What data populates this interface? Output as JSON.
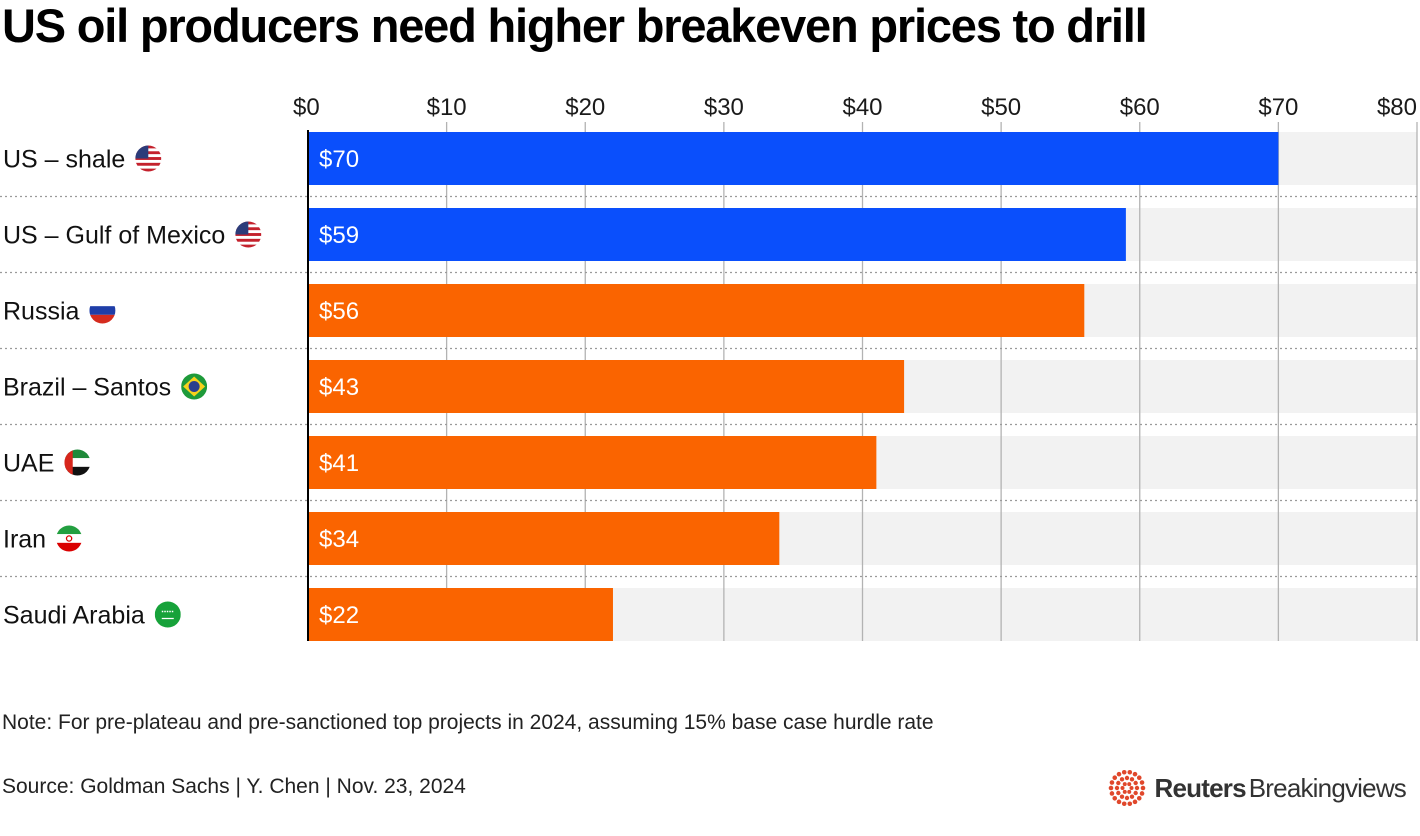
{
  "title": "US oil producers need higher breakeven prices to drill",
  "note": "Note: For pre-plateau and pre-sanctioned top projects in 2024, assuming 15% base case hurdle rate",
  "source": "Source: Goldman Sachs | Y. Chen | Nov. 23, 2024",
  "brand": {
    "name": "Reuters",
    "sub": "Breakingviews"
  },
  "colors": {
    "us": "#0a4ffc",
    "other": "#fa6400",
    "track": "#f2f2f2",
    "grid": "#b3b3b3",
    "brand_dots": "#e0472b"
  },
  "chart_data": {
    "type": "bar",
    "orientation": "horizontal",
    "xlim": [
      0,
      80
    ],
    "ticks": [
      {
        "value": 0,
        "label": "$0"
      },
      {
        "value": 10,
        "label": "$10"
      },
      {
        "value": 20,
        "label": "$20"
      },
      {
        "value": 30,
        "label": "$30"
      },
      {
        "value": 40,
        "label": "$40"
      },
      {
        "value": 50,
        "label": "$50"
      },
      {
        "value": 60,
        "label": "$60"
      },
      {
        "value": 70,
        "label": "$70"
      },
      {
        "value": 80,
        "label": "$80"
      }
    ],
    "bars": [
      {
        "category": "US – shale",
        "value": 70,
        "label": "$70",
        "group": "us",
        "flag": "us-flag-icon"
      },
      {
        "category": "US – Gulf of Mexico",
        "value": 59,
        "label": "$59",
        "group": "us",
        "flag": "us-flag-icon"
      },
      {
        "category": "Russia",
        "value": 56,
        "label": "$56",
        "group": "other",
        "flag": "russia-flag-icon"
      },
      {
        "category": "Brazil – Santos",
        "value": 43,
        "label": "$43",
        "group": "other",
        "flag": "brazil-flag-icon"
      },
      {
        "category": "UAE",
        "value": 41,
        "label": "$41",
        "group": "other",
        "flag": "uae-flag-icon"
      },
      {
        "category": "Iran",
        "value": 34,
        "label": "$34",
        "group": "other",
        "flag": "iran-flag-icon"
      },
      {
        "category": "Saudi Arabia",
        "value": 22,
        "label": "$22",
        "group": "other",
        "flag": "saudi-flag-icon"
      }
    ]
  }
}
